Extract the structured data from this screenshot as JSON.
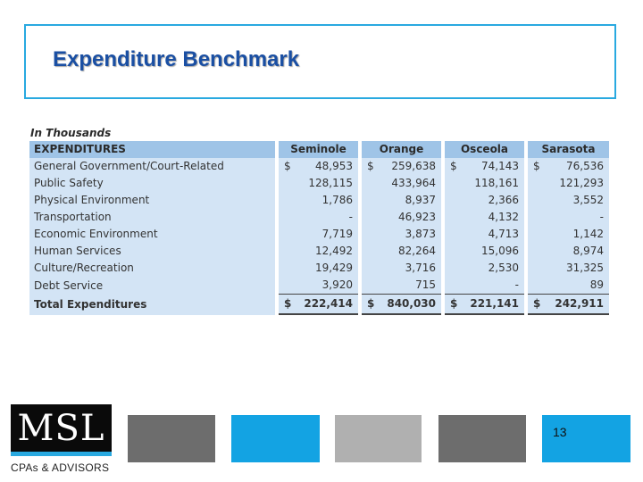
{
  "slide": {
    "title": "Expenditure Benchmark",
    "caption": "In Thousands",
    "page_number": "13"
  },
  "table": {
    "header": {
      "label": "EXPENDITURES",
      "counties": [
        "Seminole",
        "Orange",
        "Osceola",
        "Sarasota"
      ]
    },
    "rows": [
      {
        "label": "General Government/Court-Related",
        "values": [
          "48,953",
          "259,638",
          "74,143",
          "76,536"
        ],
        "currency": [
          "$",
          "$",
          "$",
          "$"
        ]
      },
      {
        "label": "Public Safety",
        "values": [
          "128,115",
          "433,964",
          "118,161",
          "121,293"
        ],
        "currency": [
          "",
          "",
          "",
          ""
        ]
      },
      {
        "label": "Physical Environment",
        "values": [
          "1,786",
          "8,937",
          "2,366",
          "3,552"
        ],
        "currency": [
          "",
          "",
          "",
          ""
        ]
      },
      {
        "label": "Transportation",
        "values": [
          "-",
          "46,923",
          "4,132",
          "-"
        ],
        "currency": [
          "",
          "",
          "",
          ""
        ]
      },
      {
        "label": "Economic Environment",
        "values": [
          "7,719",
          "3,873",
          "4,713",
          "1,142"
        ],
        "currency": [
          "",
          "",
          "",
          ""
        ]
      },
      {
        "label": "Human Services",
        "values": [
          "12,492",
          "82,264",
          "15,096",
          "8,974"
        ],
        "currency": [
          "",
          "",
          "",
          ""
        ]
      },
      {
        "label": "Culture/Recreation",
        "values": [
          "19,429",
          "3,716",
          "2,530",
          "31,325"
        ],
        "currency": [
          "",
          "",
          "",
          ""
        ]
      },
      {
        "label": "Debt Service",
        "values": [
          "3,920",
          "715",
          "-",
          "89"
        ],
        "currency": [
          "",
          "",
          "",
          ""
        ]
      }
    ],
    "total": {
      "label": "Total Expenditures",
      "values": [
        "222,414",
        "840,030",
        "221,141",
        "242,911"
      ],
      "currency": [
        "$",
        "$",
        "$",
        "$"
      ]
    }
  },
  "branding": {
    "logo_text": "MSL",
    "tagline": "CPAs & ADVISORS"
  },
  "colors": {
    "accent": "#29a9e0",
    "title": "#1a4fa3",
    "header_fill": "#9fc4e7",
    "body_fill": "#d3e4f5"
  }
}
